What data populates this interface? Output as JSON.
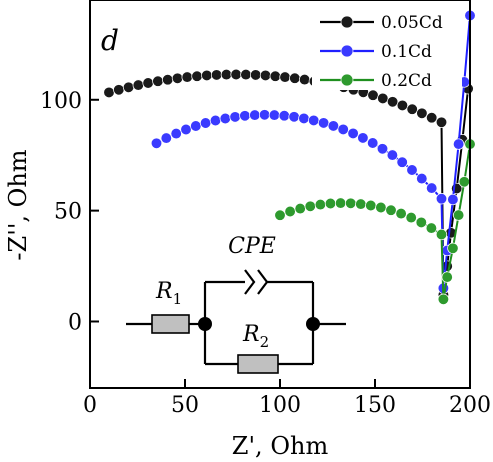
{
  "chart_data": {
    "type": "scatter",
    "title": "",
    "panel_label": "d",
    "xlabel": "Z', Ohm",
    "ylabel": "-Z'', Ohm",
    "xlim": [
      0,
      200
    ],
    "ylim": [
      -30,
      145
    ],
    "x_ticks": [
      0,
      50,
      100,
      150,
      200
    ],
    "y_ticks": [
      0,
      50,
      100
    ],
    "grid": false,
    "legend_position": "top-right",
    "series": [
      {
        "name": "0.05Cd",
        "color": "#000000",
        "marker_color": "#1a1a1a",
        "arc": {
          "start_x": 10,
          "end_x": 185,
          "x_fit": 77,
          "y_fit": -170,
          "r_fit": 281.4
        },
        "tail": {
          "x": [
            185,
            186,
            188,
            190,
            193,
            196,
            199
          ],
          "y": [
            3,
            12,
            25,
            40,
            60,
            82,
            105
          ]
        }
      },
      {
        "name": "0.1Cd",
        "color": "#1f1fff",
        "marker_color": "#3a3aff",
        "arc": {
          "start_x": 35,
          "end_x": 185,
          "x_fit": 92,
          "y_fit": -40,
          "r_fit": 133.2
        },
        "tail": {
          "x": [
            185,
            186,
            188,
            191,
            194,
            197,
            200
          ],
          "y": [
            3,
            15,
            32,
            55,
            80,
            108,
            138
          ]
        }
      },
      {
        "name": "0.2Cd",
        "color": "#1f8f1f",
        "marker_color": "#2e9a2e",
        "arc": {
          "start_x": 100,
          "end_x": 185,
          "x_fit": 133,
          "y_fit": -49,
          "r_fit": 102.4
        },
        "tail": {
          "x": [
            185,
            186,
            188,
            191,
            194,
            197,
            200
          ],
          "y": [
            3,
            10,
            20,
            33,
            48,
            63,
            80
          ]
        }
      }
    ],
    "inset_circuit": {
      "elements": [
        {
          "type": "resistor",
          "label": "R",
          "subscript": "1"
        },
        {
          "type": "resistor",
          "label": "R",
          "subscript": "2"
        },
        {
          "type": "constant-phase-element",
          "label": "CPE"
        }
      ]
    }
  }
}
